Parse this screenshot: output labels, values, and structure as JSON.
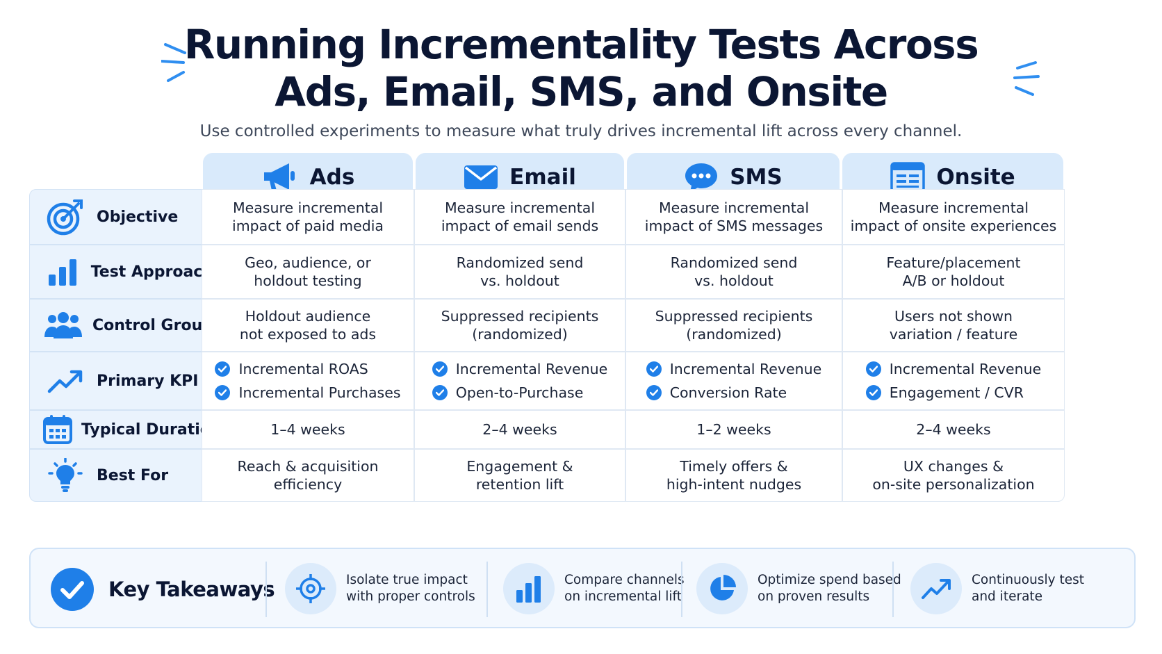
{
  "title": {
    "line1": "Running Incrementality Tests Across",
    "line2": "Ads, Email, SMS, and Onsite"
  },
  "subtitle": "Use controlled experiments to measure what truly drives incremental lift across every channel.",
  "columns": [
    {
      "label": "Ads",
      "icon": "megaphone-icon"
    },
    {
      "label": "Email",
      "icon": "envelope-icon"
    },
    {
      "label": "SMS",
      "icon": "chat-bubble-icon"
    },
    {
      "label": "Onsite",
      "icon": "browser-window-icon"
    }
  ],
  "rows": [
    {
      "label": "Objective",
      "icon": "target-icon"
    },
    {
      "label": "Test Approach",
      "icon": "bar-chart-icon"
    },
    {
      "label": "Control Group",
      "icon": "users-icon"
    },
    {
      "label": "Primary KPI",
      "icon": "trend-up-icon"
    },
    {
      "label": "Typical Duration",
      "icon": "calendar-icon"
    },
    {
      "label": "Best For",
      "icon": "lightbulb-icon"
    }
  ],
  "cells": {
    "objective": [
      [
        "Measure incremental",
        "impact of paid media"
      ],
      [
        "Measure incremental",
        "impact of email sends"
      ],
      [
        "Measure incremental",
        "impact of SMS messages"
      ],
      [
        "Measure incremental",
        "impact of onsite experiences"
      ]
    ],
    "approach": [
      [
        "Geo, audience, or",
        "holdout testing"
      ],
      [
        "Randomized send",
        "vs. holdout"
      ],
      [
        "Randomized send",
        "vs. holdout"
      ],
      [
        "Feature/placement",
        "A/B or holdout"
      ]
    ],
    "control": [
      [
        "Holdout audience",
        "not exposed to ads"
      ],
      [
        "Suppressed recipients",
        "(randomized)"
      ],
      [
        "Suppressed recipients",
        "(randomized)"
      ],
      [
        "Users not shown",
        "variation / feature"
      ]
    ],
    "kpi": [
      [
        "Incremental ROAS",
        "Incremental Purchases"
      ],
      [
        "Incremental Revenue",
        "Open-to-Purchase"
      ],
      [
        "Incremental Revenue",
        "Conversion Rate"
      ],
      [
        "Incremental Revenue",
        "Engagement / CVR"
      ]
    ],
    "duration": [
      "1–4 weeks",
      "2–4 weeks",
      "1–2 weeks",
      "2–4 weeks"
    ],
    "best_for": [
      [
        "Reach & acquisition",
        "efficiency"
      ],
      [
        "Engagement &",
        "retention lift"
      ],
      [
        "Timely offers &",
        "high-intent nudges"
      ],
      [
        "UX changes &",
        "on-site personalization"
      ]
    ]
  },
  "takeaways": {
    "label": "Key Takeaways",
    "items": [
      {
        "line1": "Isolate true impact",
        "line2": "with proper controls",
        "icon": "crosshair-icon"
      },
      {
        "line1": "Compare channels",
        "line2": "on incremental lift",
        "icon": "bar-chart-icon"
      },
      {
        "line1": "Optimize spend based",
        "line2": "on proven results",
        "icon": "pie-chart-icon"
      },
      {
        "line1": "Continuously test",
        "line2": "and iterate",
        "icon": "trend-up-icon"
      }
    ]
  },
  "colors": {
    "accent": "#1f7fe8",
    "header_bg": "#d9eafb",
    "row_head_bg": "#eaf3fd",
    "title": "#0b1633"
  }
}
